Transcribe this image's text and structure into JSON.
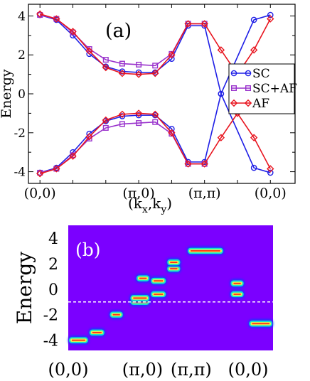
{
  "chart_data": [
    {
      "type": "line",
      "panel_label": "(a)",
      "ylabel": "Energy",
      "xlabel": "(k_x,k_y)",
      "xlabel_main": "(k",
      "xlabel_sub1": "x",
      "xlabel_comma": ",k",
      "xlabel_sub2": "y",
      "xlabel_close": ")",
      "ylim": [
        -4.6,
        4.6
      ],
      "yticks": [
        "-4",
        "-2",
        "0",
        "2",
        "4"
      ],
      "ytick_values": [
        -4,
        -2,
        0,
        2,
        4
      ],
      "xticks": [
        "(0,0)",
        "(π,0)",
        "(π,π)",
        "(0,0)"
      ],
      "xtick_values": [
        0,
        6,
        10,
        14
      ],
      "xlim": [
        -0.7,
        15.5
      ],
      "grid": false,
      "legend_position": "right",
      "x": [
        0,
        1,
        2,
        3,
        4,
        5,
        6,
        7,
        8,
        9,
        10,
        11,
        12,
        13,
        14
      ],
      "series": [
        {
          "name": "SC",
          "color": "#1f1fe6",
          "marker": "circle",
          "upper": [
            4.05,
            3.8,
            3.0,
            2.05,
            1.4,
            1.15,
            1.1,
            1.1,
            1.8,
            3.5,
            3.5,
            0.0,
            null,
            3.8,
            4.05
          ],
          "lower": [
            -4.05,
            -3.8,
            -3.0,
            -2.05,
            -1.4,
            -1.15,
            -1.1,
            -1.1,
            -1.8,
            -3.5,
            -3.5,
            0.0,
            null,
            -3.8,
            -4.05
          ],
          "band_x": [
            0,
            1,
            2,
            3,
            4,
            5,
            6,
            7,
            8,
            9,
            10,
            11,
            13,
            14
          ],
          "upper_vals": [
            4.05,
            3.8,
            3.0,
            2.05,
            1.4,
            1.15,
            1.1,
            1.1,
            1.8,
            3.5,
            3.5,
            0.0,
            3.8,
            4.05
          ],
          "lower_vals": [
            -4.05,
            -3.8,
            -3.0,
            -2.05,
            -1.4,
            -1.15,
            -1.1,
            -1.1,
            -1.8,
            -3.5,
            -3.5,
            0.0,
            -3.8,
            -4.05
          ]
        },
        {
          "name": "SC+AF",
          "color": "#9932cc",
          "marker": "square",
          "band_x": [
            0,
            1,
            2,
            3,
            4,
            5,
            6,
            7,
            8,
            9,
            10
          ],
          "upper_vals": [
            4.05,
            3.85,
            3.15,
            2.3,
            1.75,
            1.55,
            1.5,
            1.45,
            2.05,
            3.6,
            3.6
          ],
          "lower_vals": [
            -4.05,
            -3.85,
            -3.15,
            -2.3,
            -1.75,
            -1.55,
            -1.5,
            -1.45,
            -2.05,
            -3.6,
            -3.6
          ]
        },
        {
          "name": "AF",
          "color": "#e8141e",
          "marker": "diamond",
          "band_x": [
            0,
            1,
            2,
            3,
            4,
            5,
            6,
            7,
            8,
            9,
            10,
            11,
            12,
            13,
            14
          ],
          "upper_vals": [
            4.1,
            3.85,
            3.2,
            2.2,
            1.35,
            1.05,
            1.0,
            1.05,
            2.0,
            3.6,
            3.6,
            2.25,
            1.0,
            2.25,
            3.85
          ],
          "lower_vals": [
            -4.1,
            -3.85,
            -3.2,
            -2.2,
            -1.35,
            -1.05,
            -1.0,
            -1.05,
            -2.0,
            -3.6,
            -3.6,
            -2.25,
            -1.0,
            -2.25,
            -3.85
          ]
        }
      ]
    },
    {
      "type": "heatmap",
      "panel_label": "(b)",
      "ylabel": "Energy",
      "ylim": [
        -4.8,
        5.0
      ],
      "yticks": [
        "4",
        "2",
        "0",
        "-2",
        "-4"
      ],
      "ytick_values": [
        4,
        2,
        0,
        -2,
        -4
      ],
      "xticks": [
        "(0,0)",
        "(π,0)",
        "(π,π)",
        "(0,0)"
      ],
      "xtick_values": [
        0,
        0.3627,
        0.6,
        0.8788
      ],
      "reference_line_y": -1.0,
      "reference_line_style": "dashed white",
      "background_color": "#7b00ff",
      "segments": [
        {
          "x": [
            0.0,
            0.1
          ],
          "y": -4.0
        },
        {
          "x": [
            0.1,
            0.18
          ],
          "y": -3.4
        },
        {
          "x": [
            0.2,
            0.27
          ],
          "y": -2.0
        },
        {
          "x": [
            0.3,
            0.4
          ],
          "y": -1.0
        },
        {
          "x": [
            0.3,
            0.4
          ],
          "y": -0.7
        },
        {
          "x": [
            0.33,
            0.4
          ],
          "y": 0.85
        },
        {
          "x": [
            0.4,
            0.48
          ],
          "y": -0.4
        },
        {
          "x": [
            0.4,
            0.48
          ],
          "y": 0.65
        },
        {
          "x": [
            0.48,
            0.55
          ],
          "y": 1.6
        },
        {
          "x": [
            0.48,
            0.55
          ],
          "y": 2.1
        },
        {
          "x": [
            0.58,
            0.76
          ],
          "y": 3.0
        },
        {
          "x": [
            0.79,
            0.86
          ],
          "y": -0.4
        },
        {
          "x": [
            0.79,
            0.86
          ],
          "y": 0.45
        },
        {
          "x": [
            0.88,
            1.0
          ],
          "y": -2.7
        }
      ]
    }
  ]
}
